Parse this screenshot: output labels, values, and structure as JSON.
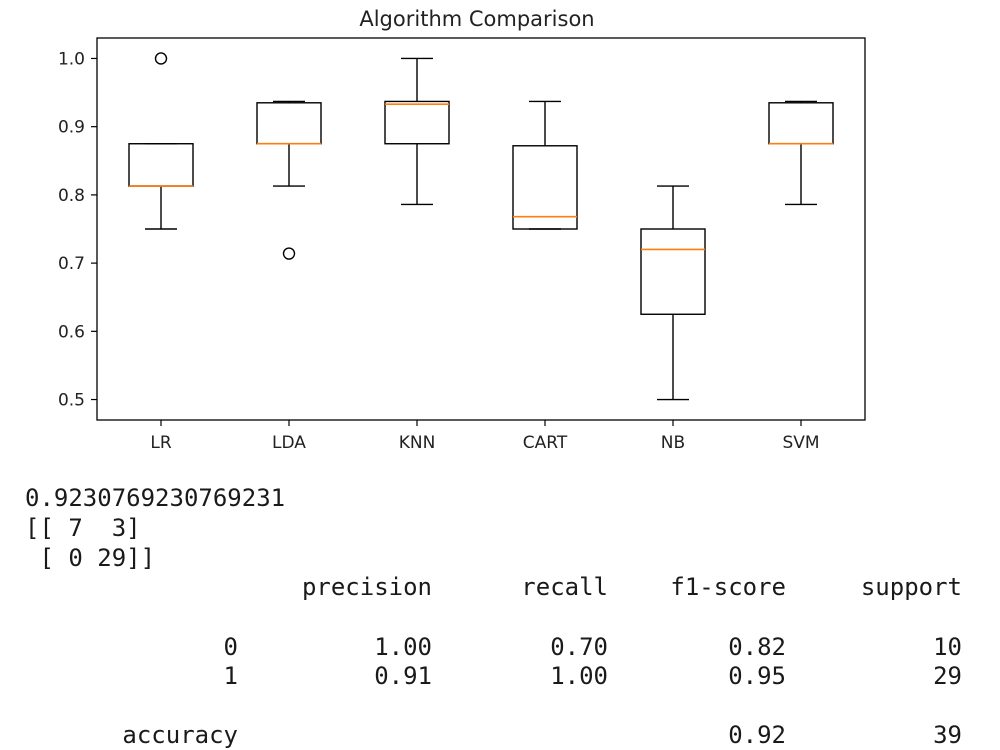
{
  "chart_data": {
    "type": "boxplot",
    "title": "Algorithm Comparison",
    "categories": [
      "LR",
      "LDA",
      "KNN",
      "CART",
      "NB",
      "SVM"
    ],
    "ylim": [
      0.47,
      1.03
    ],
    "yticks": [
      "0.5",
      "0.6",
      "0.7",
      "0.8",
      "0.9",
      "1.0"
    ],
    "box_color": "#000000",
    "median_color": "#ff7f0e",
    "boxes": [
      {
        "name": "LR",
        "whislo": 0.75,
        "q1": 0.813,
        "med": 0.813,
        "q3": 0.875,
        "whishi": 0.875,
        "fliers": [
          1.0
        ]
      },
      {
        "name": "LDA",
        "whislo": 0.813,
        "q1": 0.875,
        "med": 0.875,
        "q3": 0.935,
        "whishi": 0.937,
        "fliers": [
          0.714
        ]
      },
      {
        "name": "KNN",
        "whislo": 0.786,
        "q1": 0.875,
        "med": 0.933,
        "q3": 0.937,
        "whishi": 1.0,
        "fliers": []
      },
      {
        "name": "CART",
        "whislo": 0.75,
        "q1": 0.75,
        "med": 0.768,
        "q3": 0.872,
        "whishi": 0.937,
        "fliers": []
      },
      {
        "name": "NB",
        "whislo": 0.5,
        "q1": 0.625,
        "med": 0.72,
        "q3": 0.75,
        "whishi": 0.813,
        "fliers": []
      },
      {
        "name": "SVM",
        "whislo": 0.786,
        "q1": 0.875,
        "med": 0.875,
        "q3": 0.935,
        "whishi": 0.937,
        "fliers": []
      }
    ]
  },
  "output": {
    "score": "0.9230769230769231",
    "matrix_line1": "[[ 7  3]",
    "matrix_line2": " [ 0 29]]",
    "report": {
      "headers": [
        "precision",
        "recall",
        "f1-score",
        "support"
      ],
      "rows": [
        {
          "label": "0",
          "precision": "1.00",
          "recall": "0.70",
          "f1": "0.82",
          "support": "10"
        },
        {
          "label": "1",
          "precision": "0.91",
          "recall": "1.00",
          "f1": "0.95",
          "support": "29"
        }
      ],
      "accuracy": {
        "label": "accuracy",
        "f1": "0.92",
        "support": "39"
      }
    }
  }
}
